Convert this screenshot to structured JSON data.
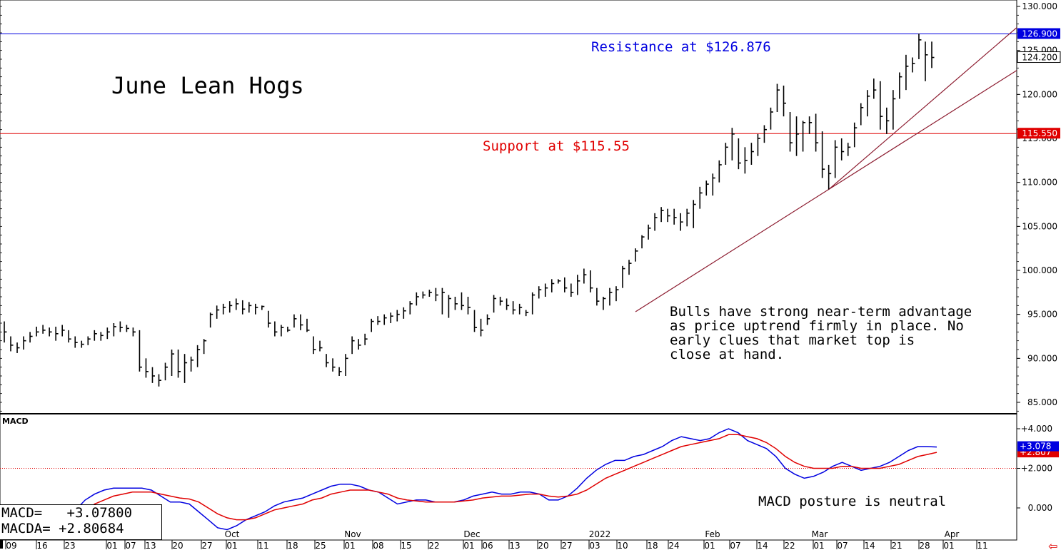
{
  "chart_data": [
    {
      "type": "ohlc",
      "title": "June Lean Hogs",
      "ylim": [
        83.0,
        131.0
      ],
      "y_ticks": [
        "85.000",
        "90.000",
        "95.000",
        "100.000",
        "105.000",
        "110.000",
        "115.000",
        "120.000",
        "125.000",
        "130.000"
      ],
      "x_tick_labels": [
        "09",
        "16",
        "23",
        "01",
        "07",
        "13",
        "20",
        "27",
        "01",
        "11",
        "18",
        "25",
        "01",
        "08",
        "15",
        "22",
        "01",
        "06",
        "13",
        "20",
        "27",
        "03",
        "10",
        "18",
        "24",
        "01",
        "07",
        "14",
        "22",
        "01",
        "07",
        "14",
        "21",
        "28",
        "01",
        "11"
      ],
      "month_labels": [
        "Oct",
        "Nov",
        "Dec",
        "2022",
        "Feb",
        "Mar",
        "Apr"
      ],
      "series": [
        {
          "values": [
            [
              94.2,
              91.8,
              93.0
            ],
            [
              92.5,
              90.8,
              91.5
            ],
            [
              91.8,
              90.6,
              91.2
            ],
            [
              92.5,
              91.0,
              92.0
            ],
            [
              93.0,
              91.8,
              92.5
            ],
            [
              93.6,
              92.5,
              93.0
            ],
            [
              93.8,
              92.8,
              93.2
            ],
            [
              93.5,
              92.5,
              93.0
            ],
            [
              93.6,
              92.0,
              92.8
            ],
            [
              93.8,
              92.5,
              93.2
            ],
            [
              93.2,
              91.8,
              92.2
            ],
            [
              92.5,
              91.2,
              91.8
            ],
            [
              92.0,
              91.2,
              91.6
            ],
            [
              92.5,
              91.5,
              92.2
            ],
            [
              93.2,
              92.0,
              92.8
            ],
            [
              93.0,
              92.0,
              92.6
            ],
            [
              93.5,
              92.2,
              93.0
            ],
            [
              94.0,
              92.5,
              93.6
            ],
            [
              94.2,
              93.0,
              93.5
            ],
            [
              93.8,
              93.0,
              93.4
            ],
            [
              93.5,
              92.5,
              93.0
            ],
            [
              93.2,
              88.5,
              89.0
            ],
            [
              90.0,
              87.8,
              88.5
            ],
            [
              89.0,
              87.2,
              88.0
            ],
            [
              88.2,
              86.8,
              87.5
            ],
            [
              89.5,
              87.5,
              89.0
            ],
            [
              91.0,
              88.0,
              90.5
            ],
            [
              91.0,
              87.8,
              88.5
            ],
            [
              90.5,
              87.2,
              89.5
            ],
            [
              90.2,
              88.5,
              89.8
            ],
            [
              91.5,
              89.0,
              91.0
            ],
            [
              92.2,
              90.5,
              92.0
            ],
            [
              95.2,
              93.5,
              95.0
            ],
            [
              96.0,
              94.5,
              95.5
            ],
            [
              96.2,
              95.0,
              95.8
            ],
            [
              96.5,
              95.2,
              96.0
            ],
            [
              96.8,
              95.5,
              96.2
            ],
            [
              96.6,
              95.0,
              95.6
            ],
            [
              96.4,
              95.2,
              96.0
            ],
            [
              96.2,
              95.0,
              95.8
            ],
            [
              96.0,
              95.5,
              95.9
            ],
            [
              95.4,
              93.5,
              94.0
            ],
            [
              94.2,
              92.5,
              93.0
            ],
            [
              93.8,
              92.5,
              93.5
            ],
            [
              93.6,
              93.0,
              93.2
            ],
            [
              95.0,
              93.5,
              94.5
            ],
            [
              95.0,
              93.2,
              93.8
            ],
            [
              94.5,
              93.0,
              93.2
            ],
            [
              92.5,
              90.5,
              91.0
            ],
            [
              92.0,
              90.8,
              91.2
            ],
            [
              90.5,
              89.0,
              89.5
            ],
            [
              90.0,
              88.5,
              89.0
            ],
            [
              89.0,
              88.0,
              88.5
            ],
            [
              90.5,
              88.0,
              90.0
            ],
            [
              92.5,
              90.5,
              92.0
            ],
            [
              92.2,
              91.0,
              91.5
            ],
            [
              92.8,
              91.5,
              92.2
            ],
            [
              94.5,
              93.0,
              94.2
            ],
            [
              94.8,
              93.8,
              94.2
            ],
            [
              95.0,
              93.8,
              94.6
            ],
            [
              95.2,
              94.0,
              94.8
            ],
            [
              95.5,
              94.2,
              95.0
            ],
            [
              95.8,
              94.5,
              95.4
            ],
            [
              96.5,
              95.0,
              96.2
            ],
            [
              97.5,
              96.0,
              97.0
            ],
            [
              97.6,
              96.8,
              97.2
            ],
            [
              97.8,
              97.0,
              97.5
            ],
            [
              98.0,
              96.5,
              97.2
            ],
            [
              98.0,
              95.0,
              97.5
            ],
            [
              97.2,
              94.6,
              96.8
            ],
            [
              97.0,
              95.5,
              96.2
            ],
            [
              97.5,
              95.5,
              96.0
            ],
            [
              97.0,
              95.0,
              95.8
            ],
            [
              95.5,
              93.0,
              93.5
            ],
            [
              94.5,
              92.5,
              93.2
            ],
            [
              95.0,
              93.8,
              94.5
            ],
            [
              97.2,
              95.2,
              96.8
            ],
            [
              97.0,
              96.0,
              96.5
            ],
            [
              96.8,
              95.5,
              96.0
            ],
            [
              96.5,
              95.0,
              95.5
            ],
            [
              96.2,
              95.0,
              95.8
            ],
            [
              95.5,
              94.8,
              95.2
            ],
            [
              97.5,
              95.0,
              97.2
            ],
            [
              98.2,
              96.8,
              97.8
            ],
            [
              98.5,
              97.0,
              98.0
            ],
            [
              99.0,
              97.5,
              98.5
            ],
            [
              99.0,
              98.5,
              98.8
            ],
            [
              99.2,
              97.5,
              98.0
            ],
            [
              98.5,
              97.0,
              97.5
            ],
            [
              99.5,
              97.2,
              98.8
            ],
            [
              100.2,
              98.5,
              99.5
            ],
            [
              100.0,
              97.5,
              98.0
            ],
            [
              98.0,
              96.0,
              96.5
            ],
            [
              97.0,
              95.5,
              96.8
            ],
            [
              98.0,
              96.0,
              97.5
            ],
            [
              98.2,
              96.5,
              97.8
            ],
            [
              100.5,
              98.0,
              100.2
            ],
            [
              101.2,
              99.5,
              100.8
            ],
            [
              102.5,
              101.0,
              102.2
            ],
            [
              104.0,
              102.5,
              103.8
            ],
            [
              105.2,
              103.5,
              104.8
            ],
            [
              106.5,
              104.5,
              106.0
            ],
            [
              107.2,
              105.5,
              106.8
            ],
            [
              107.0,
              105.5,
              106.2
            ],
            [
              107.0,
              105.2,
              106.0
            ],
            [
              106.5,
              104.5,
              105.5
            ],
            [
              107.0,
              105.0,
              106.5
            ],
            [
              108.0,
              104.8,
              107.5
            ],
            [
              109.5,
              107.0,
              108.8
            ],
            [
              110.2,
              108.5,
              109.8
            ],
            [
              111.0,
              108.5,
              110.5
            ],
            [
              112.5,
              110.0,
              112.0
            ],
            [
              114.5,
              112.0,
              114.0
            ],
            [
              116.2,
              112.5,
              115.5
            ],
            [
              115.0,
              111.5,
              112.2
            ],
            [
              114.0,
              111.0,
              112.5
            ],
            [
              114.5,
              112.0,
              113.5
            ],
            [
              115.5,
              113.0,
              115.0
            ],
            [
              116.5,
              114.5,
              116.0
            ],
            [
              118.5,
              116.0,
              118.0
            ],
            [
              121.2,
              118.0,
              120.5
            ],
            [
              121.0,
              117.5,
              119.0
            ],
            [
              118.0,
              113.5,
              114.5
            ],
            [
              117.5,
              113.0,
              115.5
            ],
            [
              117.0,
              113.5,
              116.8
            ],
            [
              117.5,
              115.5,
              116.8
            ],
            [
              117.8,
              113.5,
              114.5
            ],
            [
              115.8,
              110.5,
              111.5
            ],
            [
              112.0,
              109.2,
              111.0
            ],
            [
              114.8,
              110.5,
              114.0
            ],
            [
              115.0,
              112.5,
              113.5
            ],
            [
              114.5,
              113.0,
              114.0
            ],
            [
              116.8,
              114.0,
              116.2
            ],
            [
              119.0,
              116.5,
              118.5
            ],
            [
              120.5,
              117.5,
              119.8
            ],
            [
              121.8,
              119.5,
              120.5
            ],
            [
              121.5,
              116.0,
              117.5
            ],
            [
              118.5,
              115.5,
              117.0
            ],
            [
              120.5,
              116.0,
              119.5
            ],
            [
              122.5,
              119.5,
              122.0
            ],
            [
              124.5,
              120.5,
              123.2
            ],
            [
              124.2,
              122.5,
              123.5
            ],
            [
              126.9,
              124.0,
              126.2
            ],
            [
              126.0,
              121.5,
              124.5
            ],
            [
              126.0,
              123.0,
              124.2
            ]
          ]
        }
      ],
      "annotations": [
        {
          "text": "Resistance at $126.876",
          "color": "#0000e0"
        },
        {
          "text": "Support at $115.55",
          "color": "#e00000"
        },
        {
          "text": "Bulls have strong near-term advantage\nas price uptrend firmly in place. No\nearly clues that market top is\nclose at hand.",
          "color": "#000000"
        }
      ],
      "levels": [
        {
          "value": 126.876,
          "label": "126.900",
          "color": "#0000e0"
        },
        {
          "value": 115.55,
          "label": "115.550",
          "color": "#e00000"
        }
      ],
      "trendlines": [
        {
          "from": [
            95.3,
            95.3
          ],
          "to": [
            109.5,
            109.5
          ],
          "through": "up"
        }
      ],
      "last_price_label": "124.200",
      "colors": {
        "bars": "#000000",
        "trendline": "#8b1a2e",
        "resistance": "#0000e0",
        "support": "#e00000"
      }
    },
    {
      "type": "line",
      "title": "MACD",
      "ylim": [
        -1.3,
        4.6
      ],
      "y_ticks": [
        "+4.000",
        "+2.000",
        "0.000"
      ],
      "annotation": "MACD posture is neutral",
      "zero_ref_line": 2.0,
      "series": [
        {
          "name": "MACD",
          "color": "#0000e0",
          "values": [
            -0.7,
            -0.8,
            -0.9,
            -1.0,
            -1.1,
            -1.1,
            -1.1,
            -0.7,
            -0.1,
            0.4,
            0.7,
            0.9,
            1.0,
            1.0,
            1.0,
            1.0,
            0.9,
            0.6,
            0.3,
            0.3,
            0.2,
            -0.2,
            -0.6,
            -1.0,
            -1.1,
            -0.9,
            -0.6,
            -0.4,
            -0.2,
            0.1,
            0.3,
            0.4,
            0.5,
            0.7,
            0.9,
            1.1,
            1.2,
            1.2,
            1.1,
            0.9,
            0.8,
            0.5,
            0.2,
            0.3,
            0.4,
            0.4,
            0.3,
            0.3,
            0.3,
            0.4,
            0.6,
            0.7,
            0.8,
            0.7,
            0.7,
            0.8,
            0.8,
            0.7,
            0.4,
            0.4,
            0.6,
            1.0,
            1.5,
            1.9,
            2.2,
            2.4,
            2.4,
            2.6,
            2.7,
            2.9,
            3.1,
            3.4,
            3.6,
            3.5,
            3.4,
            3.5,
            3.8,
            4.0,
            3.8,
            3.4,
            3.2,
            3.0,
            2.6,
            2.0,
            1.7,
            1.5,
            1.6,
            1.8,
            2.1,
            2.3,
            2.1,
            1.9,
            2.0,
            2.1,
            2.3,
            2.6,
            2.9,
            3.1,
            3.1,
            3.078
          ]
        },
        {
          "name": "MACDA",
          "color": "#e00000",
          "values": [
            -0.5,
            -0.6,
            -0.7,
            -0.8,
            -0.9,
            -0.95,
            -1.0,
            -0.9,
            -0.6,
            -0.2,
            0.2,
            0.4,
            0.6,
            0.7,
            0.8,
            0.8,
            0.8,
            0.7,
            0.6,
            0.5,
            0.45,
            0.3,
            0.0,
            -0.3,
            -0.5,
            -0.6,
            -0.6,
            -0.5,
            -0.3,
            -0.1,
            0.0,
            0.1,
            0.2,
            0.4,
            0.5,
            0.7,
            0.8,
            0.9,
            0.9,
            0.9,
            0.8,
            0.7,
            0.5,
            0.4,
            0.35,
            0.3,
            0.3,
            0.3,
            0.3,
            0.35,
            0.4,
            0.5,
            0.55,
            0.6,
            0.6,
            0.65,
            0.7,
            0.7,
            0.6,
            0.55,
            0.6,
            0.7,
            0.9,
            1.2,
            1.5,
            1.7,
            1.9,
            2.1,
            2.3,
            2.5,
            2.7,
            2.9,
            3.1,
            3.2,
            3.3,
            3.4,
            3.5,
            3.7,
            3.7,
            3.6,
            3.5,
            3.3,
            3.0,
            2.6,
            2.3,
            2.1,
            2.0,
            2.0,
            2.0,
            2.1,
            2.1,
            2.0,
            2.0,
            2.0,
            2.1,
            2.2,
            2.4,
            2.6,
            2.7,
            2.80684
          ]
        }
      ],
      "value_labels": {
        "macd_tag": "+3.078",
        "macda_tag": "+2.807"
      }
    }
  ],
  "readout": {
    "macd": "MACD=   +3.07800",
    "macda": "MACDA= +2.80684"
  }
}
